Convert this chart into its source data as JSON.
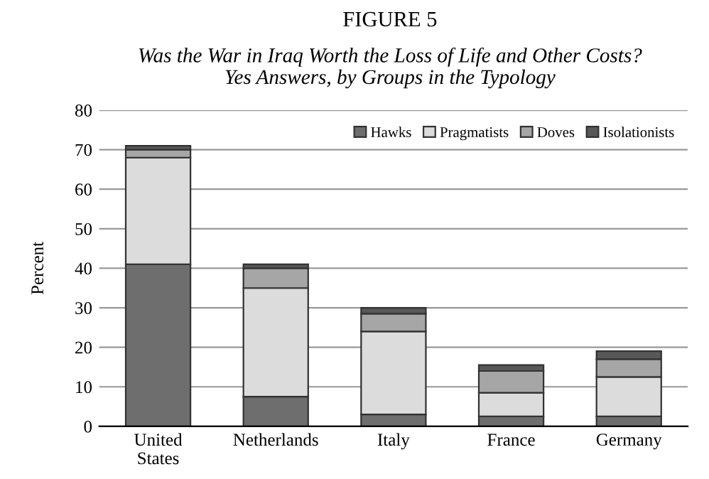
{
  "chart_data": {
    "type": "bar",
    "title": "FIGURE 5",
    "subtitle": "Was the War in Iraq Worth the Loss of Life and Other Costs?\nYes Answers, by Groups in the Typology",
    "ylabel": "Percent",
    "categories": [
      "United\nStates",
      "Netherlands",
      "Italy",
      "France",
      "Germany"
    ],
    "stacked": true,
    "series": [
      {
        "name": "Hawks",
        "color": "#6e6e6e",
        "values": [
          41,
          7.5,
          3,
          2.5,
          2.5
        ]
      },
      {
        "name": "Pragmatists",
        "color": "#dcdcdc",
        "values": [
          27,
          27.5,
          21,
          6,
          10
        ]
      },
      {
        "name": "Doves",
        "color": "#a6a6a6",
        "values": [
          2,
          5,
          4.5,
          5.5,
          4.5
        ]
      },
      {
        "name": "Isolationists",
        "color": "#585858",
        "values": [
          1,
          1,
          1.5,
          1.5,
          2
        ]
      }
    ],
    "ylim": [
      0,
      80
    ],
    "yticks": [
      0,
      10,
      20,
      30,
      40,
      50,
      60,
      70,
      80
    ],
    "grid": "y",
    "legend": "top right"
  }
}
